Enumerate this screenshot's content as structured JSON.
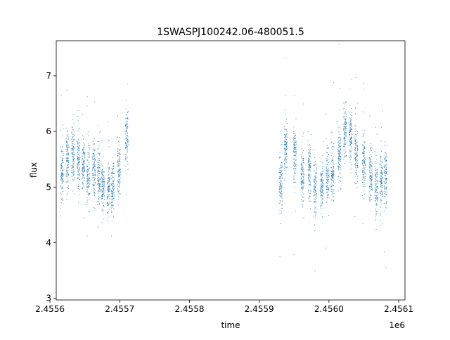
{
  "chart_data": {
    "type": "scatter",
    "title": "1SWASPJ100242.06-480051.5",
    "xlabel": "time",
    "ylabel": "flux",
    "x_offset_label": "1e6",
    "xlim": [
      2455609,
      2456109
    ],
    "ylim": [
      2.97,
      7.63
    ],
    "x_ticks": [
      2455600,
      2455700,
      2455800,
      2455900,
      2456000,
      2456100
    ],
    "x_tick_labels": [
      "2.4556",
      "2.4557",
      "2.4558",
      "2.4559",
      "2.4560",
      "2.4561"
    ],
    "y_ticks": [
      3,
      4,
      5,
      6,
      7
    ],
    "y_tick_labels": [
      "3",
      "4",
      "5",
      "6",
      "7"
    ],
    "grid": false,
    "legend": "none",
    "series": [
      {
        "color": "#1f77b4",
        "clusters": [
          {
            "x": 2455617,
            "y": 5.3
          },
          {
            "x": 2455625,
            "y": 5.5
          },
          {
            "x": 2455633,
            "y": 5.6
          },
          {
            "x": 2455641,
            "y": 5.5
          },
          {
            "x": 2455648,
            "y": 5.4
          },
          {
            "x": 2455655,
            "y": 5.2
          },
          {
            "x": 2455663,
            "y": 5.3
          },
          {
            "x": 2455670,
            "y": 5.2
          },
          {
            "x": 2455676,
            "y": 5.0
          },
          {
            "x": 2455684,
            "y": 4.95
          },
          {
            "x": 2455690,
            "y": 5.0
          },
          {
            "x": 2455699,
            "y": 5.3
          },
          {
            "x": 2455710,
            "y": 5.9
          },
          {
            "x": 2455931,
            "y": 5.1
          },
          {
            "x": 2455938,
            "y": 5.7
          },
          {
            "x": 2455951,
            "y": 5.6
          },
          {
            "x": 2455962,
            "y": 5.2
          },
          {
            "x": 2455972,
            "y": 5.3
          },
          {
            "x": 2455980,
            "y": 5.0
          },
          {
            "x": 2455990,
            "y": 5.0
          },
          {
            "x": 2455998,
            "y": 5.2
          },
          {
            "x": 2456005,
            "y": 5.2
          },
          {
            "x": 2456015,
            "y": 5.6
          },
          {
            "x": 2456023,
            "y": 6.0
          },
          {
            "x": 2456031,
            "y": 5.9
          },
          {
            "x": 2456039,
            "y": 5.6
          },
          {
            "x": 2456050,
            "y": 5.4
          },
          {
            "x": 2456060,
            "y": 5.2
          },
          {
            "x": 2456068,
            "y": 5.0
          },
          {
            "x": 2456075,
            "y": 5.1
          },
          {
            "x": 2456081,
            "y": 5.2
          }
        ]
      }
    ]
  }
}
